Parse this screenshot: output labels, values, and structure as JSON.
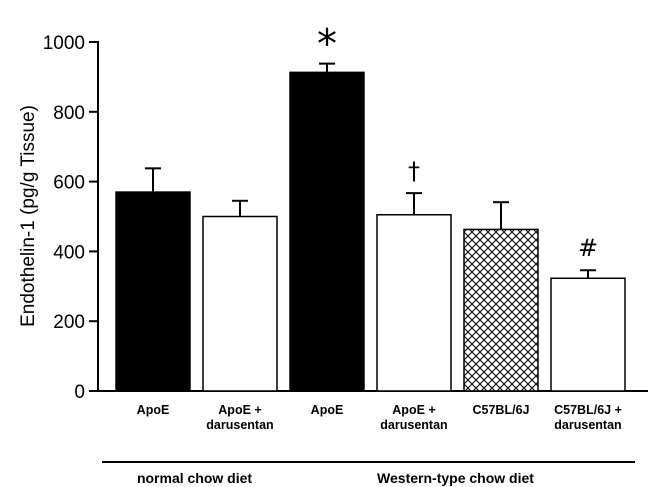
{
  "chart_data": {
    "type": "bar",
    "title": "",
    "xlabel": "",
    "ylabel": "Endothelin-1 (pg/g Tissue)",
    "ylim": [
      0,
      1000
    ],
    "yticks": [
      0,
      200,
      400,
      600,
      800,
      1000
    ],
    "categories": [
      [
        "ApoE"
      ],
      [
        "ApoE +",
        "darusentan"
      ],
      [
        "ApoE"
      ],
      [
        "ApoE +",
        "darusentan"
      ],
      [
        "C57BL/6J"
      ],
      [
        "C57BL/6J +",
        "darusentan"
      ]
    ],
    "values": [
      570,
      500,
      913,
      505,
      463,
      323
    ],
    "errors": [
      68,
      45,
      25,
      62,
      78,
      23
    ],
    "fills": [
      "solid",
      "open",
      "solid",
      "open",
      "crosshatch",
      "open"
    ],
    "annotations": [
      "",
      "",
      "*",
      "†",
      "",
      "#"
    ],
    "groups": [
      {
        "label": "normal chow diet",
        "from": 0,
        "to": 1
      },
      {
        "label": "Western-type chow diet",
        "from": 2,
        "to": 5
      }
    ],
    "grid": false,
    "colors": {
      "bar_solid": "#000000",
      "bar_open": "#ffffff",
      "stroke": "#000000"
    }
  }
}
